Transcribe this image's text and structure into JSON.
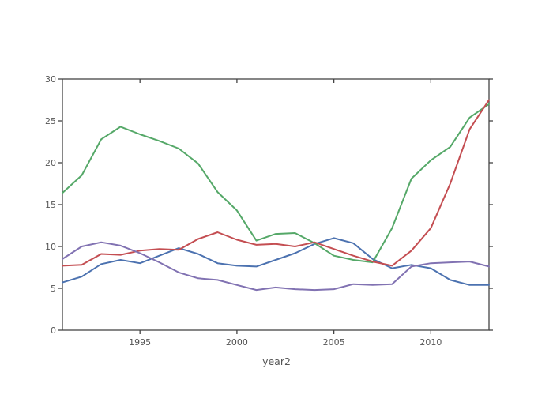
{
  "figure": {
    "background_color": "#ffffff",
    "axis_color": "#444444",
    "tick_label_color": "#555555"
  },
  "chart_data": {
    "type": "line",
    "title": "",
    "xlabel": "year2",
    "ylabel": "",
    "xlim": [
      1991,
      2013
    ],
    "ylim": [
      0,
      30
    ],
    "grid": false,
    "legend": "none",
    "xticks": [
      1995,
      2000,
      2005,
      2010
    ],
    "xtick_labels": [
      "1995",
      "2000",
      "2005",
      "2010"
    ],
    "yticks": [
      0,
      5,
      10,
      15,
      20,
      25,
      30
    ],
    "ytick_labels": [
      "0",
      "5",
      "10",
      "15",
      "20",
      "25",
      "30"
    ],
    "x": [
      1991,
      1992,
      1993,
      1994,
      1995,
      1996,
      1997,
      1998,
      1999,
      2000,
      2001,
      2002,
      2003,
      2004,
      2005,
      2006,
      2007,
      2008,
      2009,
      2010,
      2011,
      2012,
      2013
    ],
    "series": [
      {
        "name": "blue-line",
        "color": "#4c72b0",
        "values": [
          5.7,
          6.4,
          7.9,
          8.4,
          8.0,
          8.9,
          9.8,
          9.1,
          8.0,
          7.7,
          7.6,
          8.4,
          9.2,
          10.3,
          11.0,
          10.4,
          8.5,
          7.4,
          7.8,
          7.4,
          6.0,
          5.4,
          5.4
        ]
      },
      {
        "name": "green-line",
        "color": "#55a868",
        "values": [
          16.4,
          18.5,
          22.8,
          24.3,
          23.4,
          22.6,
          21.7,
          19.9,
          16.5,
          14.3,
          10.7,
          11.5,
          11.6,
          10.4,
          8.9,
          8.4,
          8.1,
          12.2,
          18.1,
          20.3,
          21.9,
          25.4,
          27.0
        ]
      },
      {
        "name": "red-line",
        "color": "#c44e52",
        "values": [
          7.7,
          7.8,
          9.1,
          9.0,
          9.5,
          9.7,
          9.6,
          10.9,
          11.7,
          10.8,
          10.2,
          10.3,
          10.0,
          10.5,
          9.7,
          8.9,
          8.2,
          7.7,
          9.5,
          12.2,
          17.5,
          24.0,
          27.5
        ]
      },
      {
        "name": "purple-line",
        "color": "#8172b2",
        "values": [
          8.5,
          10.0,
          10.5,
          10.1,
          9.2,
          8.1,
          6.9,
          6.2,
          6.0,
          5.4,
          4.8,
          5.1,
          4.9,
          4.8,
          4.9,
          5.5,
          5.4,
          5.5,
          7.6,
          8.0,
          8.1,
          8.2,
          7.6
        ]
      }
    ]
  }
}
